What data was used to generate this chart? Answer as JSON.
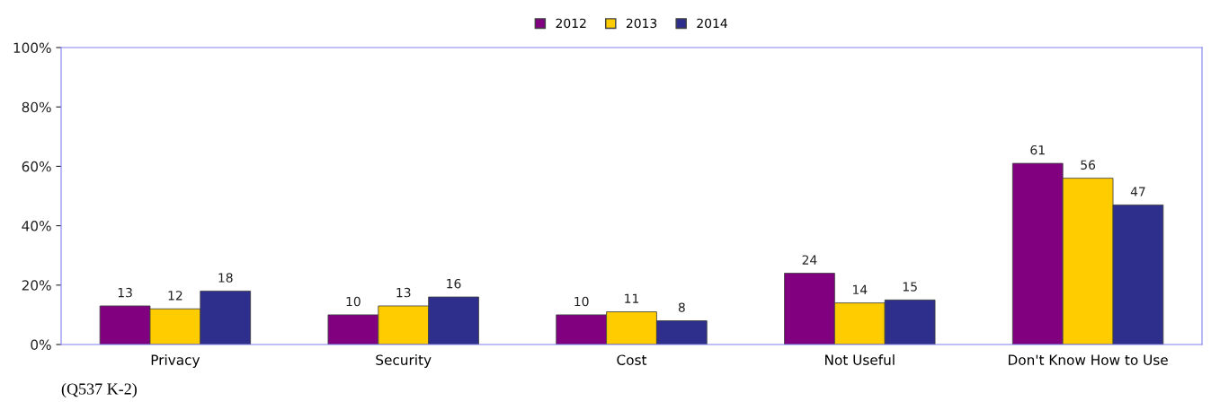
{
  "chart_data": {
    "type": "bar",
    "categories": [
      "Privacy",
      "Security",
      "Cost",
      "Not Useful",
      "Don't Know How to Use"
    ],
    "series": [
      {
        "name": "2012",
        "color": "#800080",
        "values": [
          13,
          10,
          10,
          24,
          61
        ]
      },
      {
        "name": "2013",
        "color": "#ffcc00",
        "values": [
          12,
          13,
          11,
          14,
          56
        ]
      },
      {
        "name": "2014",
        "color": "#2e2e8c",
        "values": [
          18,
          16,
          8,
          15,
          47
        ]
      }
    ],
    "ylim": [
      0,
      100
    ],
    "yticks": [
      {
        "value": 0,
        "label": "0%"
      },
      {
        "value": 20,
        "label": "20%"
      },
      {
        "value": 40,
        "label": "40%"
      },
      {
        "value": 60,
        "label": "60%"
      },
      {
        "value": 80,
        "label": "80%"
      },
      {
        "value": 100,
        "label": "100%"
      }
    ],
    "data_labels": true,
    "legend": "top",
    "grid": false,
    "annotations": [
      "(Q537 K-2)"
    ]
  }
}
